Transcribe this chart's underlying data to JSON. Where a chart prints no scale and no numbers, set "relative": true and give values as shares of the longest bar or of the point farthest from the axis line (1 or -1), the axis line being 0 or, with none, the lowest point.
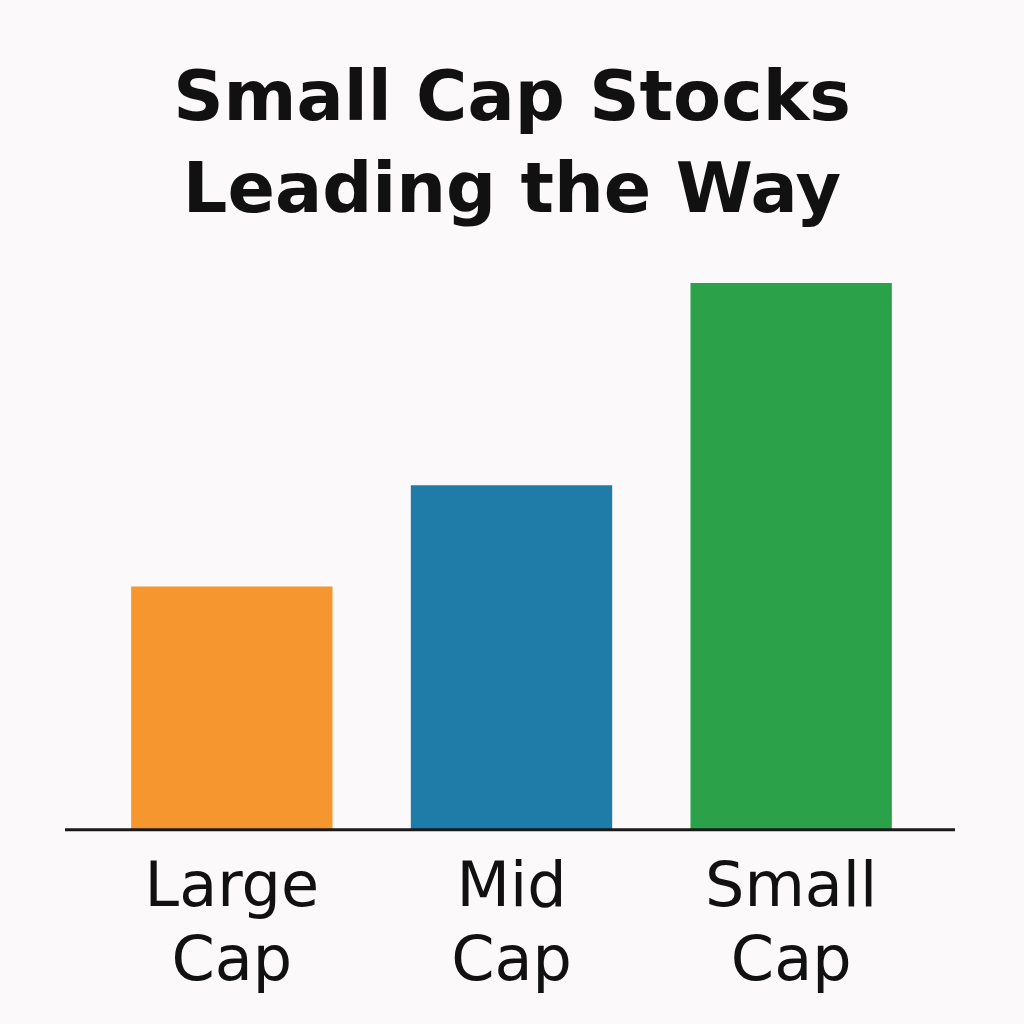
{
  "chart_data": {
    "type": "bar",
    "title": "Small Cap Stocks Leading the Way",
    "categories": [
      "Large Cap",
      "Mid Cap",
      "Small Cap"
    ],
    "values": [
      0.445,
      0.63,
      1
    ],
    "colors": [
      "#f5962e",
      "#1f7ba8",
      "#2ba24a"
    ],
    "relative": true
  }
}
